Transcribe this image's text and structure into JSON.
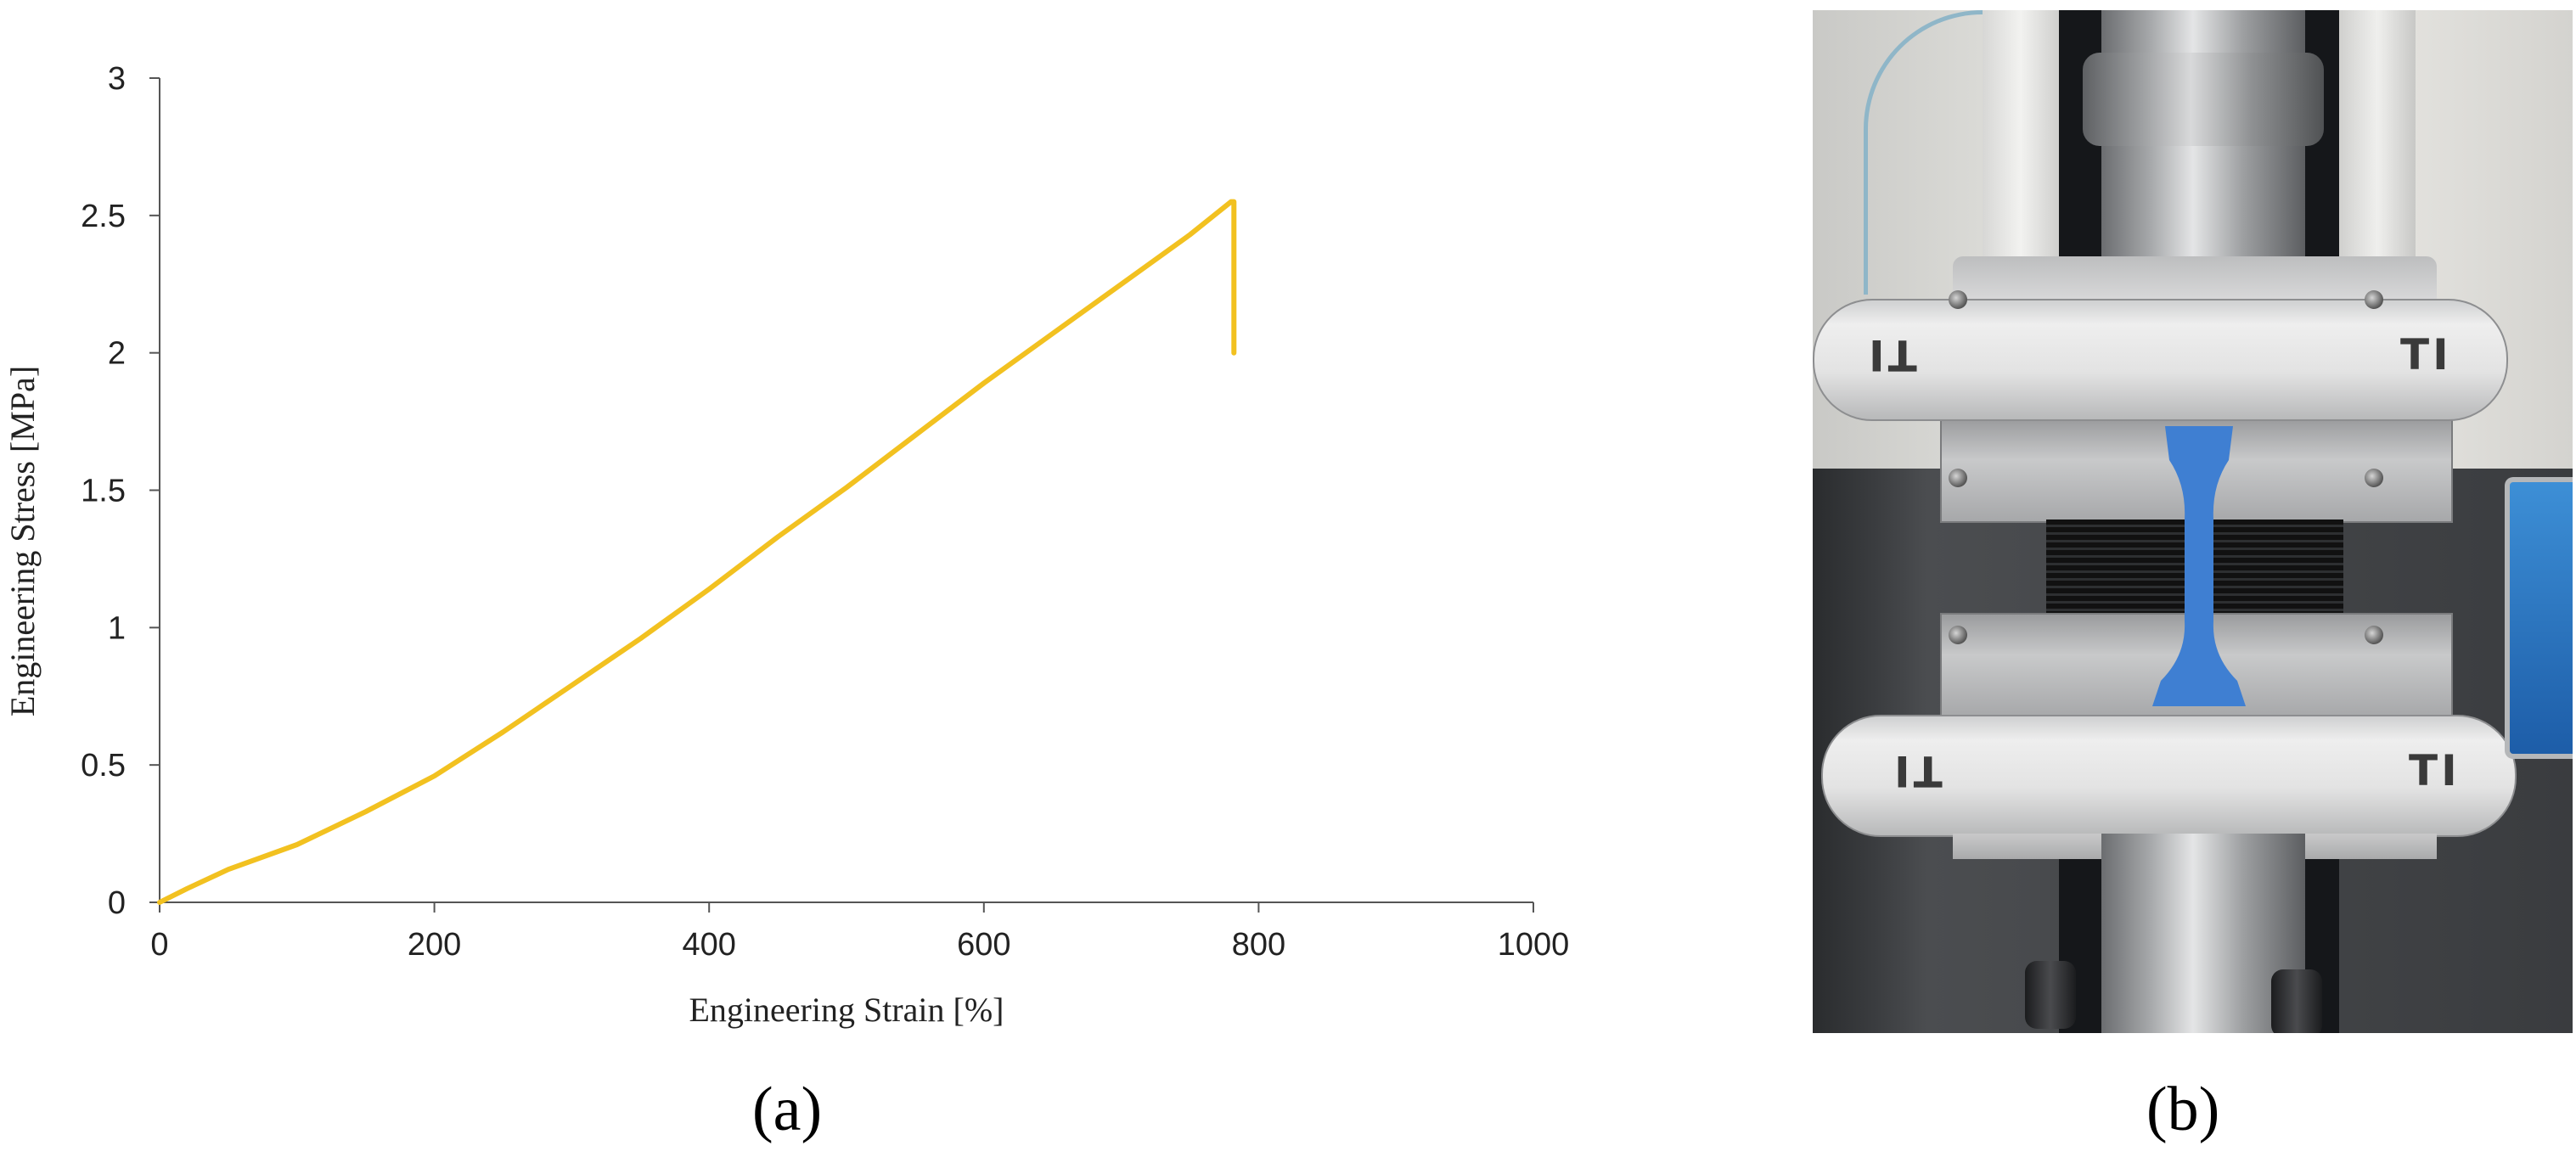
{
  "chart_data": {
    "type": "line",
    "title": "",
    "xlabel": "Engineering Strain [%]",
    "ylabel": "Engineering Stress  [MPa]",
    "xlim": [
      0,
      1000
    ],
    "ylim": [
      0,
      3
    ],
    "xticks": [
      "0",
      "200",
      "400",
      "600",
      "800",
      "1000"
    ],
    "yticks": [
      "0",
      "0.5",
      "1",
      "1.5",
      "2",
      "2.5",
      "3"
    ],
    "grid": false,
    "legend": "none",
    "series": [
      {
        "color": "#f2c120",
        "x": [
          0,
          20,
          50,
          100,
          150,
          200,
          250,
          300,
          350,
          400,
          450,
          500,
          550,
          600,
          650,
          700,
          750,
          780,
          782,
          782
        ],
        "y": [
          0,
          0.05,
          0.12,
          0.21,
          0.33,
          0.46,
          0.62,
          0.79,
          0.96,
          1.14,
          1.33,
          1.51,
          1.7,
          1.89,
          2.07,
          2.25,
          2.43,
          2.55,
          2.55,
          2.0
        ]
      }
    ]
  },
  "panels": {
    "a_label": "(a)",
    "b_label": "(b)"
  },
  "photo": {
    "description_icon": "tensile-test-photo",
    "grip_marks": [
      "TI",
      "TI",
      "TI",
      "TI"
    ],
    "specimen_color": "#3f7fd2"
  }
}
